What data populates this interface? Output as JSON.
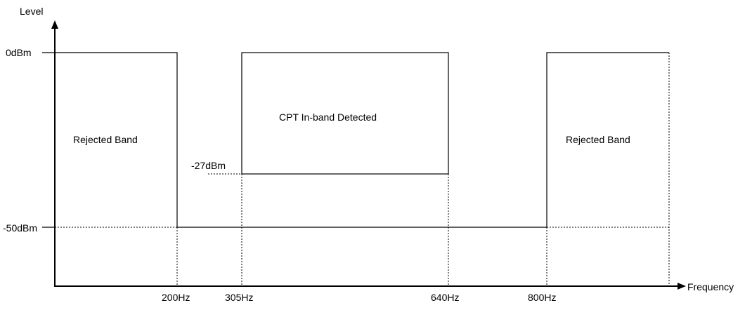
{
  "diagram": {
    "y_axis_label": "Level",
    "x_axis_label": "Frequency",
    "level_labels": {
      "top": "0dBm",
      "mid": "-27dBm",
      "low": "-50dBm"
    },
    "frequency_labels": {
      "f1": "200Hz",
      "f2": "305Hz",
      "f3": "640Hz",
      "f4": "800Hz"
    },
    "regions": {
      "left": "Rejected Band",
      "center": "CPT In-band Detected",
      "right": "Rejected Band"
    }
  }
}
